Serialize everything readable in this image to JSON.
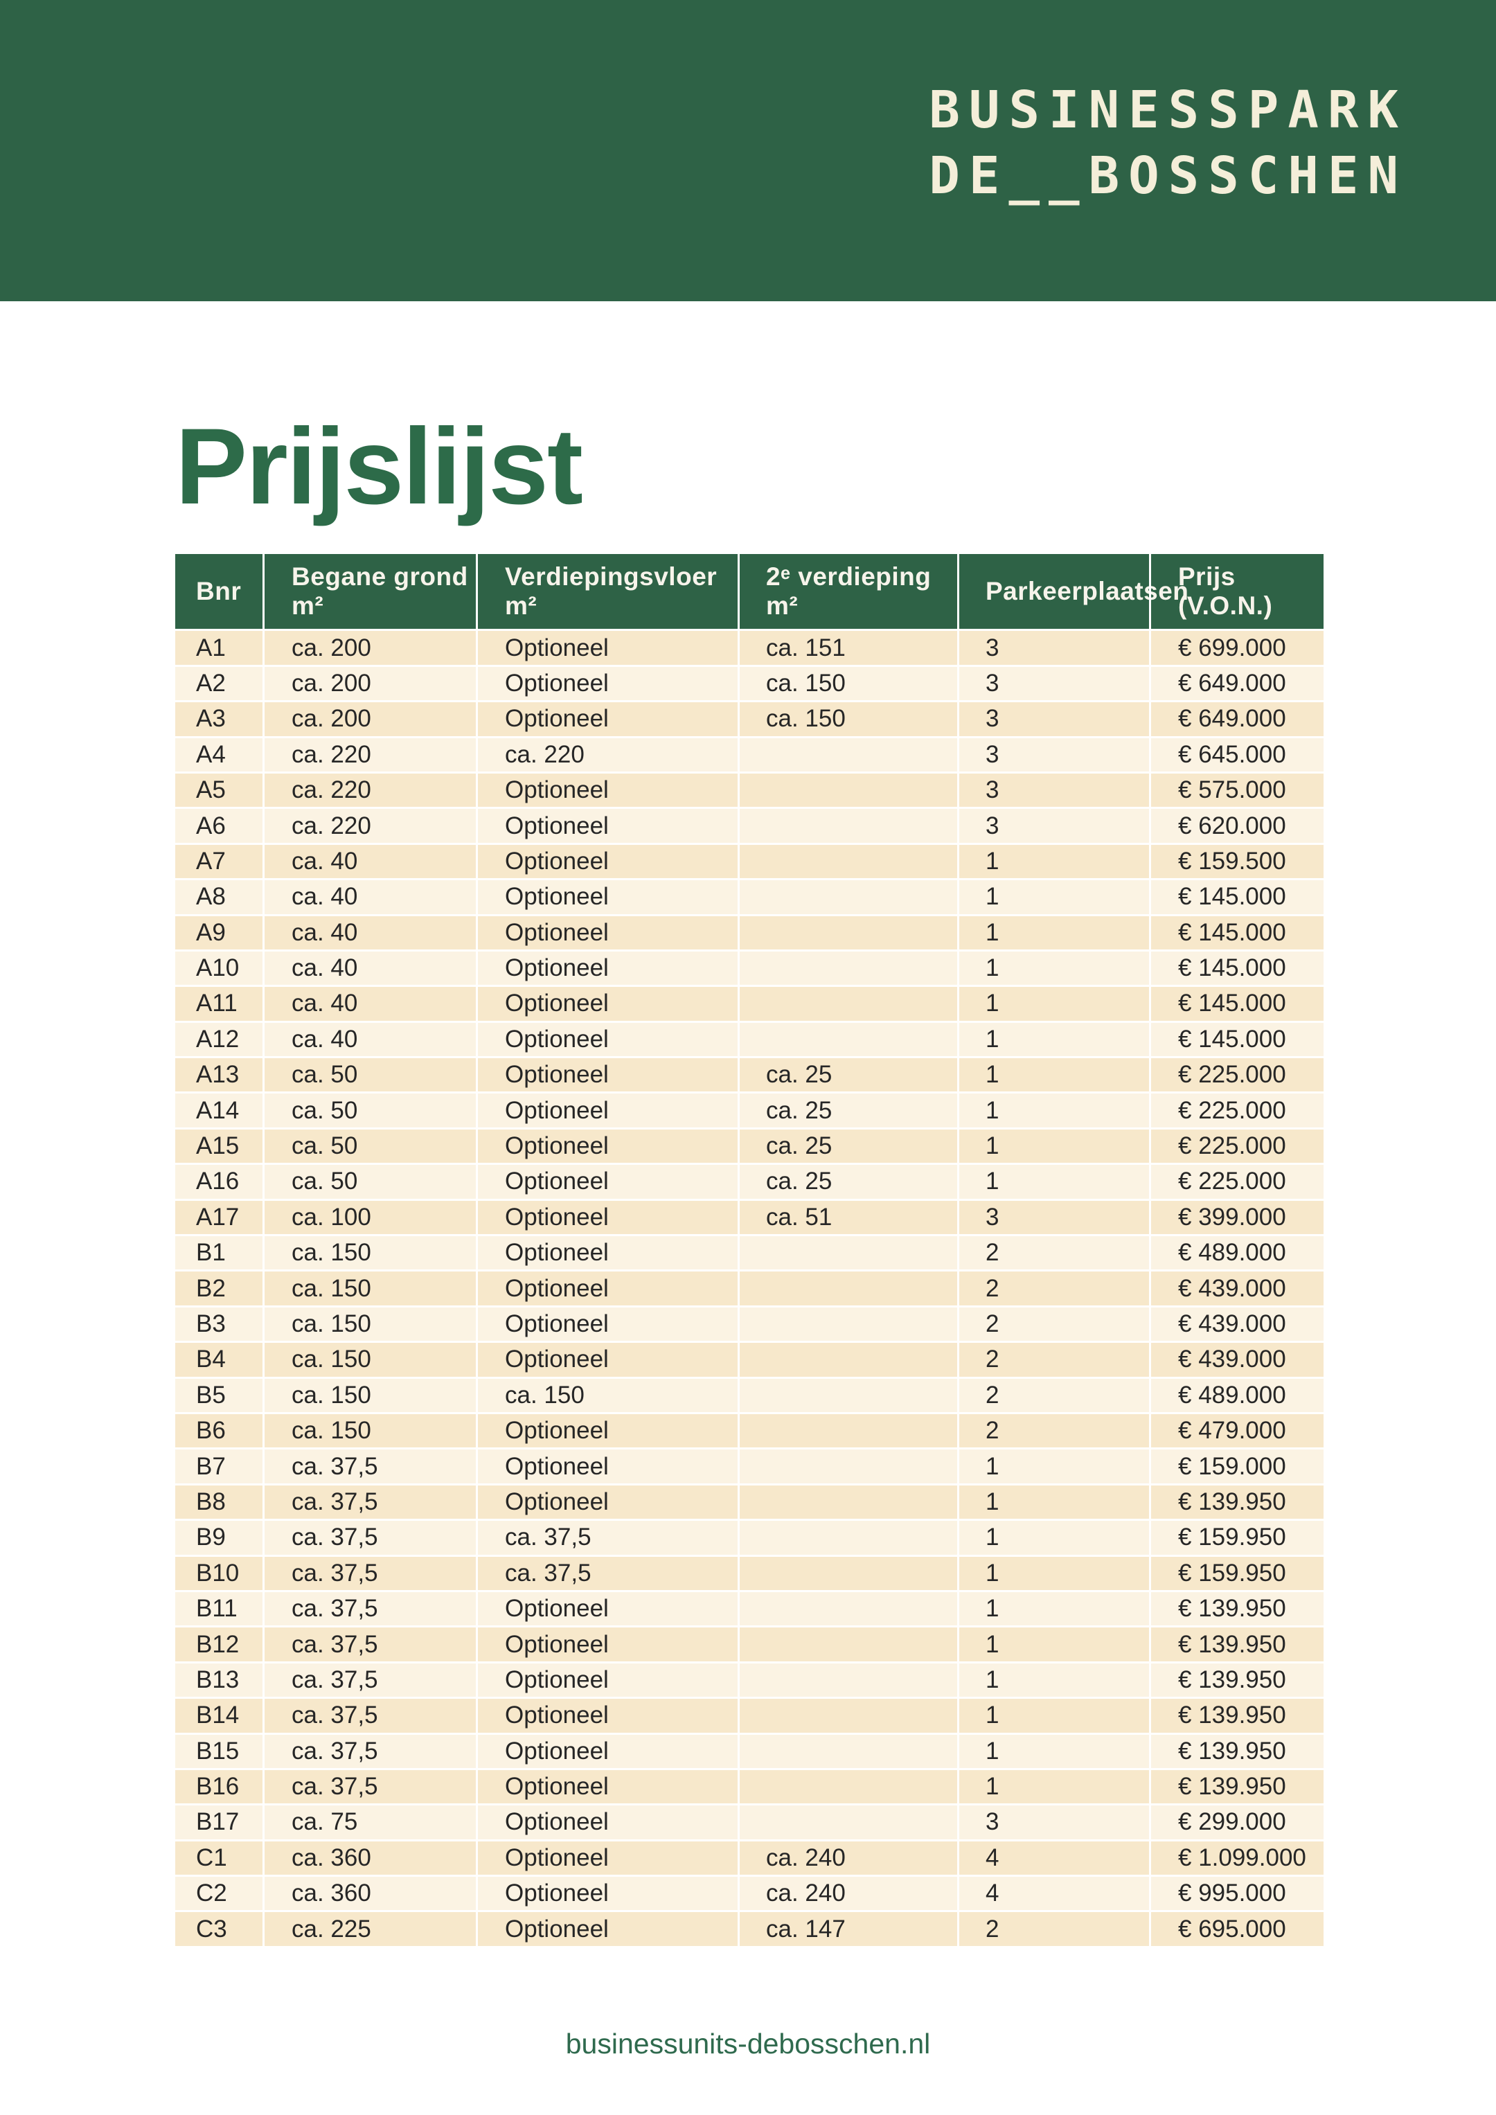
{
  "brand": {
    "logo_line1": "BUSINESSPARK",
    "logo_line2": "DE__BOSSCHEN"
  },
  "page": {
    "title": "Prijslijst",
    "footer_url": "businessunits-debosschen.nl"
  },
  "colors": {
    "brand_green": "#2E6246",
    "title_green": "#2D6B49",
    "logo_cream": "#F4EED9",
    "row_odd": "#F7E8CB",
    "row_even": "#FBF3E3",
    "cell_text": "#262626",
    "header_text": "#F7F4EB",
    "footer_green": "#2F6A4E"
  },
  "table": {
    "columns": [
      "Bnr",
      "Begane grond m²",
      "Verdiepingsvloer m²",
      "2ᵉ verdieping m²",
      "Parkeerplaatsen",
      "Prijs (V.O.N.)"
    ],
    "rows": [
      [
        "A1",
        "ca. 200",
        "Optioneel",
        "ca. 151",
        "3",
        "€ 699.000"
      ],
      [
        "A2",
        "ca. 200",
        "Optioneel",
        "ca. 150",
        "3",
        "€ 649.000"
      ],
      [
        "A3",
        "ca. 200",
        "Optioneel",
        "ca. 150",
        "3",
        "€ 649.000"
      ],
      [
        "A4",
        "ca. 220",
        "ca. 220",
        "",
        "3",
        "€ 645.000"
      ],
      [
        "A5",
        "ca. 220",
        "Optioneel",
        "",
        "3",
        "€ 575.000"
      ],
      [
        "A6",
        "ca. 220",
        "Optioneel",
        "",
        "3",
        "€ 620.000"
      ],
      [
        "A7",
        "ca. 40",
        "Optioneel",
        "",
        "1",
        "€ 159.500"
      ],
      [
        "A8",
        "ca. 40",
        "Optioneel",
        "",
        "1",
        "€ 145.000"
      ],
      [
        "A9",
        "ca. 40",
        "Optioneel",
        "",
        "1",
        "€ 145.000"
      ],
      [
        "A10",
        "ca. 40",
        "Optioneel",
        "",
        "1",
        "€ 145.000"
      ],
      [
        "A11",
        "ca. 40",
        "Optioneel",
        "",
        "1",
        "€ 145.000"
      ],
      [
        "A12",
        "ca. 40",
        "Optioneel",
        "",
        "1",
        "€ 145.000"
      ],
      [
        "A13",
        "ca. 50",
        "Optioneel",
        "ca. 25",
        "1",
        "€ 225.000"
      ],
      [
        "A14",
        "ca. 50",
        "Optioneel",
        "ca. 25",
        "1",
        "€ 225.000"
      ],
      [
        "A15",
        "ca. 50",
        "Optioneel",
        "ca. 25",
        "1",
        "€ 225.000"
      ],
      [
        "A16",
        "ca. 50",
        "Optioneel",
        "ca. 25",
        "1",
        "€ 225.000"
      ],
      [
        "A17",
        "ca. 100",
        "Optioneel",
        "ca. 51",
        "3",
        "€ 399.000"
      ],
      [
        "B1",
        "ca. 150",
        "Optioneel",
        "",
        "2",
        "€ 489.000"
      ],
      [
        "B2",
        "ca. 150",
        "Optioneel",
        "",
        "2",
        "€ 439.000"
      ],
      [
        "B3",
        "ca. 150",
        "Optioneel",
        "",
        "2",
        "€ 439.000"
      ],
      [
        "B4",
        "ca. 150",
        "Optioneel",
        "",
        "2",
        "€ 439.000"
      ],
      [
        "B5",
        "ca. 150",
        "ca. 150",
        "",
        "2",
        "€ 489.000"
      ],
      [
        "B6",
        "ca. 150",
        "Optioneel",
        "",
        "2",
        "€ 479.000"
      ],
      [
        "B7",
        "ca. 37,5",
        "Optioneel",
        "",
        "1",
        "€ 159.000"
      ],
      [
        "B8",
        "ca. 37,5",
        "Optioneel",
        "",
        "1",
        "€ 139.950"
      ],
      [
        "B9",
        "ca. 37,5",
        "ca. 37,5",
        "",
        "1",
        "€ 159.950"
      ],
      [
        "B10",
        "ca. 37,5",
        "ca. 37,5",
        "",
        "1",
        "€ 159.950"
      ],
      [
        "B11",
        "ca. 37,5",
        "Optioneel",
        "",
        "1",
        "€ 139.950"
      ],
      [
        "B12",
        "ca. 37,5",
        "Optioneel",
        "",
        "1",
        "€ 139.950"
      ],
      [
        "B13",
        "ca. 37,5",
        "Optioneel",
        "",
        "1",
        "€ 139.950"
      ],
      [
        "B14",
        "ca. 37,5",
        "Optioneel",
        "",
        "1",
        "€ 139.950"
      ],
      [
        "B15",
        "ca. 37,5",
        "Optioneel",
        "",
        "1",
        "€ 139.950"
      ],
      [
        "B16",
        "ca. 37,5",
        "Optioneel",
        "",
        "1",
        "€ 139.950"
      ],
      [
        "B17",
        "ca. 75",
        "Optioneel",
        "",
        "3",
        "€ 299.000"
      ],
      [
        "C1",
        "ca. 360",
        "Optioneel",
        "ca. 240",
        "4",
        "€ 1.099.000"
      ],
      [
        "C2",
        "ca. 360",
        "Optioneel",
        "ca. 240",
        "4",
        "€ 995.000"
      ],
      [
        "C3",
        "ca. 225",
        "Optioneel",
        "ca. 147",
        "2",
        "€ 695.000"
      ]
    ]
  }
}
